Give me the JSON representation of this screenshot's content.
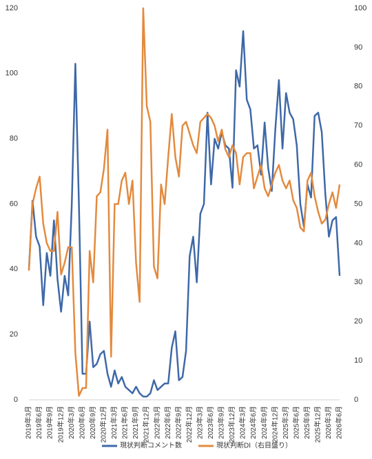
{
  "chart_data": {
    "type": "line",
    "categories": [
      "2019年3月",
      null,
      null,
      "2019年6月",
      null,
      null,
      "2019年9月",
      null,
      null,
      "2019年12月",
      null,
      null,
      "2020年3月",
      null,
      null,
      "2020年6月",
      null,
      null,
      "2020年9月",
      null,
      null,
      "2020年12月",
      null,
      null,
      "2021年3月",
      null,
      null,
      "2021年6月",
      null,
      null,
      "2021年9月",
      null,
      null,
      "2021年12月",
      null,
      null,
      "2022年3月",
      null,
      null,
      "2022年6月",
      null,
      null,
      "2022年9月",
      null,
      null,
      "2022年12月",
      null,
      null,
      "2023年3月",
      null,
      null,
      "2023年6月",
      null,
      null,
      "2023年9月",
      null,
      null,
      "2023年12月",
      null,
      null,
      "2024年3月",
      null,
      null,
      "2024年6月",
      null,
      null,
      "2024年9月",
      null,
      null,
      "2024年12月",
      null,
      null,
      "2025年3月",
      null,
      null,
      "2025年6月",
      null,
      null,
      "2025年9月",
      null,
      null,
      "2025年12月",
      null,
      null,
      "2026年3月",
      null,
      null,
      "2026年6月"
    ],
    "series": [
      {
        "name": "現状判断コメント数",
        "color": "#3e68a8",
        "values": [
          40,
          61,
          50,
          47,
          29,
          45,
          38,
          55,
          37,
          27,
          38,
          32,
          60,
          103,
          60,
          8,
          8,
          24,
          10,
          11,
          14,
          15,
          8,
          4,
          9,
          5,
          7,
          4,
          3,
          2,
          4,
          2,
          1,
          1,
          2,
          6,
          3,
          4,
          5,
          5,
          16,
          21,
          6,
          7,
          15,
          44,
          50,
          36,
          57,
          60,
          88,
          66,
          80,
          77,
          82,
          78,
          77,
          65,
          101,
          96,
          113,
          92,
          89,
          77,
          78,
          69,
          85,
          71,
          64,
          83,
          98,
          77,
          94,
          88,
          86,
          78,
          60,
          53,
          66,
          62,
          87,
          88,
          82,
          63,
          50,
          55,
          56,
          38
        ]
      },
      {
        "name": "現状判断DI（右目盛り）",
        "color": "#e38a3e",
        "axis": "y2",
        "values": [
          33,
          50,
          54,
          57,
          45,
          40,
          38,
          38,
          48,
          32,
          35,
          39,
          39,
          12,
          1,
          3,
          3,
          38,
          30,
          52,
          53,
          59,
          69,
          11,
          50,
          50,
          56,
          58,
          50,
          56,
          35,
          25,
          100,
          75,
          71,
          34,
          31,
          55,
          50,
          62,
          73,
          62,
          57,
          70,
          71,
          68,
          65,
          63,
          71,
          72,
          73,
          72,
          70,
          66,
          69,
          64,
          62,
          65,
          63,
          55,
          62,
          63,
          63,
          54,
          57,
          60,
          54,
          52,
          55,
          58,
          60,
          56,
          54,
          56,
          51,
          49,
          44,
          43,
          56,
          58,
          52,
          48,
          45,
          46,
          50,
          53,
          49,
          55
        ]
      }
    ],
    "ylim": [
      0,
      120
    ],
    "yticks": [
      0,
      20,
      40,
      60,
      80,
      100,
      120
    ],
    "y2lim": [
      0,
      100
    ],
    "y2ticks": [
      0,
      10,
      20,
      30,
      40,
      50,
      60,
      70,
      80,
      90,
      100
    ],
    "grid": false,
    "legend": "bottom"
  }
}
